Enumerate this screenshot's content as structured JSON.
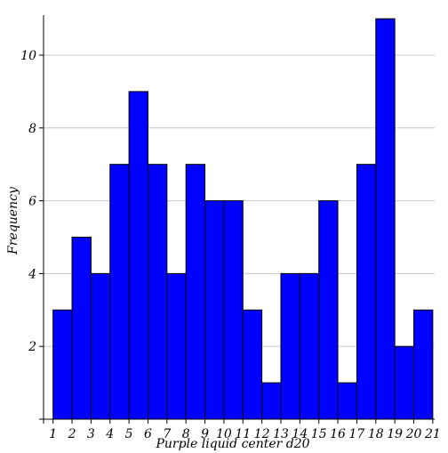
{
  "chart_data": {
    "type": "bar",
    "title": "",
    "xlabel": "Purple liquid center d20",
    "ylabel": "Frequency",
    "categories": [
      "1",
      "2",
      "3",
      "4",
      "5",
      "6",
      "7",
      "8",
      "9",
      "10",
      "11",
      "12",
      "13",
      "14",
      "15",
      "16",
      "17",
      "18",
      "19",
      "20"
    ],
    "x_ticks": [
      "1",
      "2",
      "3",
      "4",
      "5",
      "6",
      "7",
      "8",
      "9",
      "10",
      "11",
      "12",
      "13",
      "14",
      "15",
      "16",
      "17",
      "18",
      "19",
      "20",
      "21"
    ],
    "bin_edges": [
      1,
      2,
      3,
      4,
      5,
      6,
      7,
      8,
      9,
      10,
      11,
      12,
      13,
      14,
      15,
      16,
      17,
      18,
      19,
      20,
      21
    ],
    "values": [
      3,
      5,
      4,
      7,
      9,
      7,
      4,
      7,
      6,
      6,
      3,
      1,
      4,
      4,
      6,
      1,
      7,
      11,
      2,
      3
    ],
    "y_ticks": [
      "2",
      "4",
      "6",
      "8",
      "10"
    ],
    "xlim": [
      0.5,
      21.1
    ],
    "ylim": [
      0,
      11.1
    ],
    "grid": "horizontal",
    "bar_color": "#0000ff",
    "bar_edge_color": "#000000",
    "grid_color": "#c8c8c8"
  }
}
